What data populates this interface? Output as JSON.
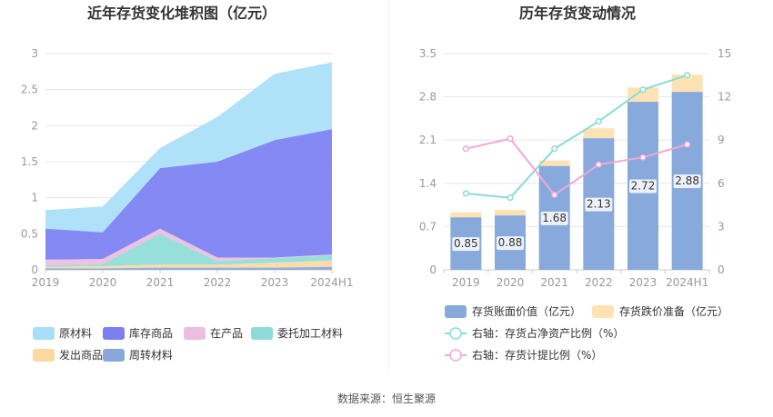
{
  "colors": {
    "raw": "#a8dff8",
    "inventory": "#7b7ff2",
    "wip": "#ebbde0",
    "consign": "#8ddcd8",
    "shipped": "#fdd9a0",
    "turnover": "#89a7dc",
    "book": "#88a9dc",
    "impair": "#fde3b4",
    "ratio_net": "#8ddad6",
    "ratio_prov": "#f0a8d8"
  },
  "footer": {
    "source": "数据来源：恒生聚源"
  },
  "chart_data": [
    {
      "type": "area",
      "title": "近年存货变化堆积图（亿元）",
      "categories": [
        "2019",
        "2020",
        "2021",
        "2022",
        "2023",
        "2024H1"
      ],
      "ylim": [
        0,
        3
      ],
      "yticks": [
        "0",
        "0.5",
        "1",
        "1.5",
        "2",
        "2.5",
        "3"
      ],
      "series": [
        {
          "name": "周转材料",
          "color_key": "turnover",
          "values": [
            0.02,
            0.02,
            0.03,
            0.03,
            0.03,
            0.04
          ]
        },
        {
          "name": "发出商品",
          "color_key": "shipped",
          "values": [
            0.02,
            0.03,
            0.04,
            0.04,
            0.07,
            0.09
          ]
        },
        {
          "name": "委托加工材料",
          "color_key": "consign",
          "values": [
            0.02,
            0.03,
            0.43,
            0.05,
            0.06,
            0.07
          ]
        },
        {
          "name": "在产品",
          "color_key": "wip",
          "values": [
            0.08,
            0.07,
            0.07,
            0.05,
            0.01,
            0.01
          ]
        },
        {
          "name": "库存商品",
          "color_key": "inventory",
          "values": [
            0.43,
            0.37,
            0.84,
            1.33,
            1.63,
            1.74
          ]
        },
        {
          "name": "原材料",
          "color_key": "raw",
          "values": [
            0.26,
            0.36,
            0.28,
            0.62,
            0.92,
            0.93
          ]
        }
      ],
      "legend": [
        "原材料",
        "库存商品",
        "在产品",
        "委托加工材料",
        "发出商品",
        "周转材料"
      ],
      "legend_keys": [
        "raw",
        "inventory",
        "wip",
        "consign",
        "shipped",
        "turnover"
      ]
    },
    {
      "type": "bar",
      "title": "历年存货变动情况",
      "categories": [
        "2019",
        "2020",
        "2021",
        "2022",
        "2023",
        "2024H1"
      ],
      "ylim": [
        0,
        3.5
      ],
      "yticks": [
        "0",
        "0.7",
        "1.4",
        "2.1",
        "2.8",
        "3.5"
      ],
      "y2lim": [
        0,
        15
      ],
      "y2ticks": [
        "0",
        "3",
        "6",
        "9",
        "12",
        "15"
      ],
      "series": [
        {
          "name": "存货账面价值（亿元）",
          "color_key": "book",
          "values": [
            0.85,
            0.88,
            1.68,
            2.13,
            2.72,
            2.88
          ],
          "labels": [
            "0.85",
            "0.88",
            "1.68",
            "2.13",
            "2.72",
            "2.88"
          ]
        },
        {
          "name": "存货跌价准备（亿元）",
          "color_key": "impair",
          "values": [
            0.08,
            0.09,
            0.09,
            0.16,
            0.23,
            0.28
          ]
        },
        {
          "name": "右轴：存货占净资产比例（%）",
          "color_key": "ratio_net",
          "type": "line",
          "axis": "right",
          "values": [
            5.3,
            5.0,
            8.4,
            10.3,
            12.5,
            13.5
          ]
        },
        {
          "name": "右轴：存货计提比例（%）",
          "color_key": "ratio_prov",
          "type": "line",
          "axis": "right",
          "values": [
            8.4,
            9.1,
            5.2,
            7.3,
            7.8,
            8.7
          ]
        }
      ]
    }
  ]
}
